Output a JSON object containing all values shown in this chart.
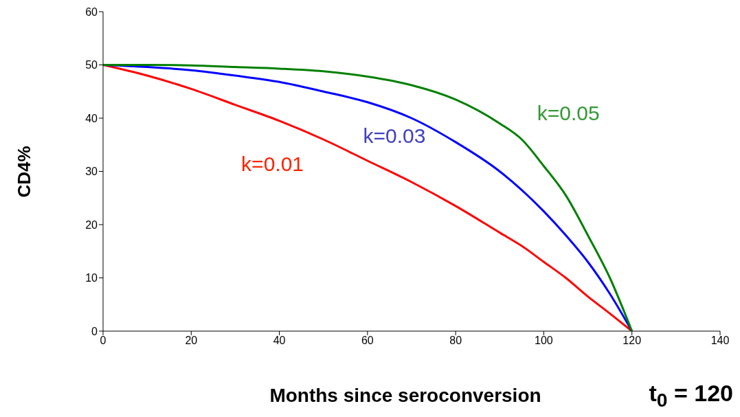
{
  "chart_data": {
    "type": "line",
    "xlabel": "Months since seroconversion",
    "ylabel": "CD4%",
    "annotations": [
      "t$_{0}$ = 120"
    ],
    "x": [
      0,
      10,
      20,
      30,
      40,
      50,
      60,
      70,
      80,
      90,
      95,
      100,
      105,
      110,
      115,
      120
    ],
    "series": [
      {
        "name": "k=0.01",
        "color": "#ff0000",
        "values": [
          50,
          48,
          45.5,
          42.5,
          39.5,
          36,
          32,
          28,
          23.5,
          18.5,
          16,
          13,
          10,
          6.5,
          3.3,
          0
        ]
      },
      {
        "name": "k=0.03",
        "color": "#0000ff",
        "values": [
          50,
          49.6,
          49,
          48,
          46.8,
          45,
          43,
          40,
          35.5,
          30,
          26.5,
          22.5,
          18,
          13,
          7,
          0
        ]
      },
      {
        "name": "k=0.05",
        "color": "#008000",
        "values": [
          50,
          50,
          49.9,
          49.6,
          49.3,
          48.8,
          47.8,
          46.2,
          43.5,
          39,
          36,
          31,
          25.5,
          18,
          10,
          0
        ]
      }
    ],
    "xlim": [
      0,
      140
    ],
    "xticks": [
      0,
      20,
      40,
      60,
      80,
      100,
      120,
      140
    ],
    "ylim": [
      0,
      60
    ],
    "yticks": [
      0,
      10,
      20,
      30,
      40,
      50,
      60
    ],
    "grid": false,
    "legend": false,
    "marker": "none",
    "line_style": "solid"
  }
}
